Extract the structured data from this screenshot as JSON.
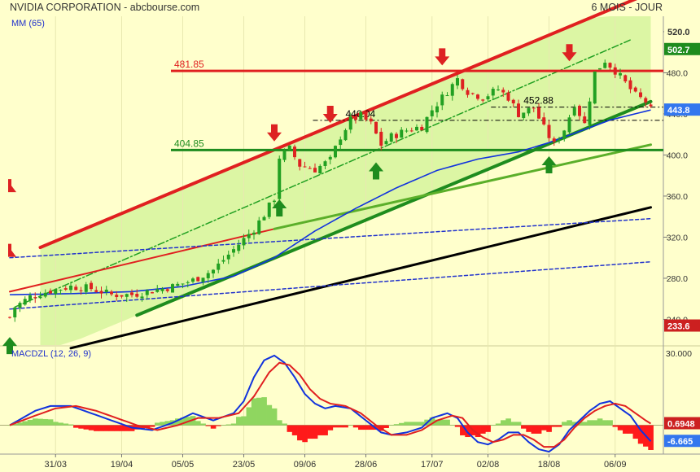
{
  "header": {
    "title": "NVIDIA CORPORATION - abcbourse.com",
    "period": "6 MOIS - JOUR"
  },
  "chart_data": [
    {
      "type": "candlestick",
      "name": "price",
      "indicator_label": "MM (65)",
      "ylim": [
        215,
        535
      ],
      "y_ticks": [
        240,
        280,
        320,
        360,
        400,
        440,
        480,
        520
      ],
      "x_ticks": [
        {
          "label": "31/03",
          "day": 9
        },
        {
          "label": "19/04",
          "day": 22
        },
        {
          "label": "05/05",
          "day": 34
        },
        {
          "label": "23/05",
          "day": 46
        },
        {
          "label": "09/06",
          "day": 58
        },
        {
          "label": "28/06",
          "day": 70
        },
        {
          "label": "17/07",
          "day": 83
        },
        {
          "label": "02/08",
          "day": 94
        },
        {
          "label": "18/08",
          "day": 106
        },
        {
          "label": "06/09",
          "day": 119
        }
      ],
      "levels": [
        {
          "label": "481.85",
          "value": 481.85,
          "color": "#E02020"
        },
        {
          "label": "404.85",
          "value": 404.85,
          "color": "#1E8C1E"
        }
      ],
      "annotations": [
        {
          "label": "440.04",
          "day": 66,
          "value": 440.04
        },
        {
          "label": "452.88",
          "day": 101,
          "value": 452.88
        }
      ],
      "price_badges": [
        {
          "label": "520.0",
          "value": 520,
          "color": "#FFFFCC",
          "text_color": "#333333"
        },
        {
          "label": "502.7",
          "value": 502.7,
          "color": "#1E8C1E",
          "text_color": "#FFFFFF"
        },
        {
          "label": "443.8",
          "value": 443.8,
          "color": "#3377EE",
          "text_color": "#FFFFFF"
        },
        {
          "label": "233.6",
          "value": 233.6,
          "color": "#CC2020",
          "text_color": "#FFFFFF"
        }
      ],
      "anchors": [
        [
          0,
          242
        ],
        [
          1,
          252
        ],
        [
          4,
          262
        ],
        [
          8,
          268
        ],
        [
          12,
          272
        ],
        [
          16,
          270
        ],
        [
          20,
          264
        ],
        [
          24,
          264
        ],
        [
          28,
          268
        ],
        [
          32,
          272
        ],
        [
          36,
          278
        ],
        [
          40,
          288
        ],
        [
          44,
          308
        ],
        [
          46,
          318
        ],
        [
          48,
          328
        ],
        [
          50,
          342
        ],
        [
          52,
          358
        ],
        [
          53,
          398
        ],
        [
          55,
          406
        ],
        [
          57,
          390
        ],
        [
          60,
          386
        ],
        [
          63,
          395
        ],
        [
          65,
          418
        ],
        [
          67,
          434
        ],
        [
          69,
          438
        ],
        [
          71,
          430
        ],
        [
          73,
          410
        ],
        [
          75,
          418
        ],
        [
          78,
          424
        ],
        [
          81,
          428
        ],
        [
          83,
          444
        ],
        [
          86,
          462
        ],
        [
          88,
          474
        ],
        [
          90,
          462
        ],
        [
          93,
          456
        ],
        [
          96,
          464
        ],
        [
          98,
          456
        ],
        [
          100,
          440
        ],
        [
          103,
          446
        ],
        [
          105,
          426
        ],
        [
          107,
          410
        ],
        [
          109,
          425
        ],
        [
          111,
          450
        ],
        [
          113,
          430
        ],
        [
          115,
          480
        ],
        [
          117,
          492
        ],
        [
          119,
          482
        ],
        [
          121,
          470
        ],
        [
          123,
          458
        ],
        [
          125,
          452
        ],
        [
          126,
          443.8
        ]
      ],
      "ma_anchors": [
        [
          0,
          264
        ],
        [
          12,
          265
        ],
        [
          24,
          267
        ],
        [
          34,
          272
        ],
        [
          44,
          282
        ],
        [
          52,
          300
        ],
        [
          60,
          326
        ],
        [
          68,
          348
        ],
        [
          76,
          368
        ],
        [
          84,
          385
        ],
        [
          92,
          396
        ],
        [
          100,
          403
        ],
        [
          106,
          412
        ],
        [
          112,
          423
        ],
        [
          118,
          434
        ],
        [
          126,
          443.8
        ]
      ],
      "channel_lines": [
        {
          "name": "upper-channel",
          "from": [
            6,
            310
          ],
          "to": [
            126,
            558
          ],
          "color": "#E02020",
          "width": 4
        },
        {
          "name": "middle-channel",
          "from": [
            1,
            252
          ],
          "to": [
            122,
            512
          ],
          "color": "#22A022",
          "width": 1.5,
          "dash": "8,3,2,3"
        },
        {
          "name": "lower-channel",
          "from": [
            25,
            244
          ],
          "to": [
            126,
            452
          ],
          "color": "#1E8C1E",
          "width": 4
        },
        {
          "name": "support-line",
          "from": [
            12,
            212
          ],
          "to": [
            126,
            349
          ],
          "color": "#000000",
          "width": 3
        },
        {
          "name": "fan-line-red",
          "from": [
            0,
            267
          ],
          "to": [
            52,
            328
          ],
          "color": "#E02020",
          "width": 2
        },
        {
          "name": "fan-line-green",
          "from": [
            52,
            328
          ],
          "to": [
            126,
            410
          ],
          "color": "#5BAF2A",
          "width": 3
        },
        {
          "name": "dotted-upper",
          "from": [
            0,
            300
          ],
          "to": [
            126,
            338
          ],
          "color": "#2233CC",
          "width": 1.5,
          "dash": "4,3"
        },
        {
          "name": "dotted-lower",
          "from": [
            0,
            250
          ],
          "to": [
            126,
            296
          ],
          "color": "#2233CC",
          "width": 1.5,
          "dash": "4,3"
        }
      ],
      "signals": [
        {
          "type": "sell",
          "day": 52,
          "value": 414
        },
        {
          "type": "sell",
          "day": 63,
          "value": 432
        },
        {
          "type": "sell",
          "day": 85,
          "value": 488
        },
        {
          "type": "sell",
          "day": 110,
          "value": 492
        },
        {
          "type": "buy",
          "day": 53,
          "value": 356
        },
        {
          "type": "buy",
          "day": 72,
          "value": 392
        },
        {
          "type": "buy",
          "day": 106,
          "value": 398
        },
        {
          "type": "buy",
          "day": 0,
          "value": 222
        }
      ],
      "edge_marks": [
        {
          "type": "sell",
          "value": 367
        },
        {
          "type": "sell",
          "value": 304
        }
      ]
    },
    {
      "type": "line",
      "name": "MACD",
      "indicator_label": "MACDZL (12, 26, 9)",
      "ylim": [
        -12,
        32
      ],
      "y_ticks": [
        {
          "label": "30.000",
          "value": 30
        }
      ],
      "badges": [
        {
          "label": "0.6948",
          "value": 0.6948,
          "color": "#CC2020"
        },
        {
          "label": "-6.665",
          "value": -6.665,
          "color": "#3377EE"
        }
      ],
      "macd_anchors": [
        [
          0,
          0
        ],
        [
          5,
          6
        ],
        [
          8,
          8
        ],
        [
          12,
          8
        ],
        [
          16,
          5
        ],
        [
          20,
          2
        ],
        [
          24,
          -1
        ],
        [
          28,
          -2
        ],
        [
          32,
          1
        ],
        [
          36,
          5
        ],
        [
          40,
          2
        ],
        [
          44,
          5
        ],
        [
          46,
          10
        ],
        [
          48,
          20
        ],
        [
          50,
          27
        ],
        [
          52,
          29
        ],
        [
          54,
          26
        ],
        [
          56,
          20
        ],
        [
          58,
          13
        ],
        [
          60,
          9
        ],
        [
          62,
          7
        ],
        [
          64,
          8
        ],
        [
          67,
          7
        ],
        [
          70,
          2
        ],
        [
          73,
          -3
        ],
        [
          75,
          -4
        ],
        [
          78,
          -3
        ],
        [
          81,
          -1
        ],
        [
          83,
          3
        ],
        [
          86,
          5
        ],
        [
          88,
          3
        ],
        [
          90,
          -3
        ],
        [
          92,
          -7
        ],
        [
          94,
          -8
        ],
        [
          96,
          -6
        ],
        [
          98,
          -3
        ],
        [
          100,
          -3
        ],
        [
          102,
          -7
        ],
        [
          104,
          -10
        ],
        [
          106,
          -11
        ],
        [
          108,
          -8
        ],
        [
          110,
          -2
        ],
        [
          112,
          2
        ],
        [
          114,
          6
        ],
        [
          116,
          9
        ],
        [
          118,
          10
        ],
        [
          120,
          7
        ],
        [
          122,
          4
        ],
        [
          124,
          -2
        ],
        [
          126,
          -6.665
        ]
      ],
      "signal_anchors": [
        [
          0,
          0
        ],
        [
          5,
          4
        ],
        [
          9,
          7
        ],
        [
          13,
          8
        ],
        [
          17,
          6
        ],
        [
          21,
          3
        ],
        [
          25,
          0
        ],
        [
          29,
          -2
        ],
        [
          33,
          0
        ],
        [
          37,
          3
        ],
        [
          41,
          3
        ],
        [
          45,
          5
        ],
        [
          48,
          12
        ],
        [
          51,
          22
        ],
        [
          53,
          26
        ],
        [
          55,
          25
        ],
        [
          57,
          21
        ],
        [
          59,
          15
        ],
        [
          61,
          11
        ],
        [
          63,
          9
        ],
        [
          66,
          8
        ],
        [
          69,
          5
        ],
        [
          72,
          0
        ],
        [
          75,
          -4
        ],
        [
          78,
          -4
        ],
        [
          81,
          -2
        ],
        [
          84,
          2
        ],
        [
          87,
          4
        ],
        [
          89,
          3
        ],
        [
          91,
          -2
        ],
        [
          93,
          -5
        ],
        [
          95,
          -7
        ],
        [
          97,
          -6
        ],
        [
          99,
          -4
        ],
        [
          101,
          -4
        ],
        [
          103,
          -6
        ],
        [
          105,
          -9
        ],
        [
          107,
          -9
        ],
        [
          109,
          -6
        ],
        [
          111,
          -1
        ],
        [
          113,
          3
        ],
        [
          115,
          6
        ],
        [
          117,
          8
        ],
        [
          119,
          9
        ],
        [
          121,
          8
        ],
        [
          123,
          5
        ],
        [
          125,
          2
        ],
        [
          126,
          0.6948
        ]
      ]
    }
  ]
}
